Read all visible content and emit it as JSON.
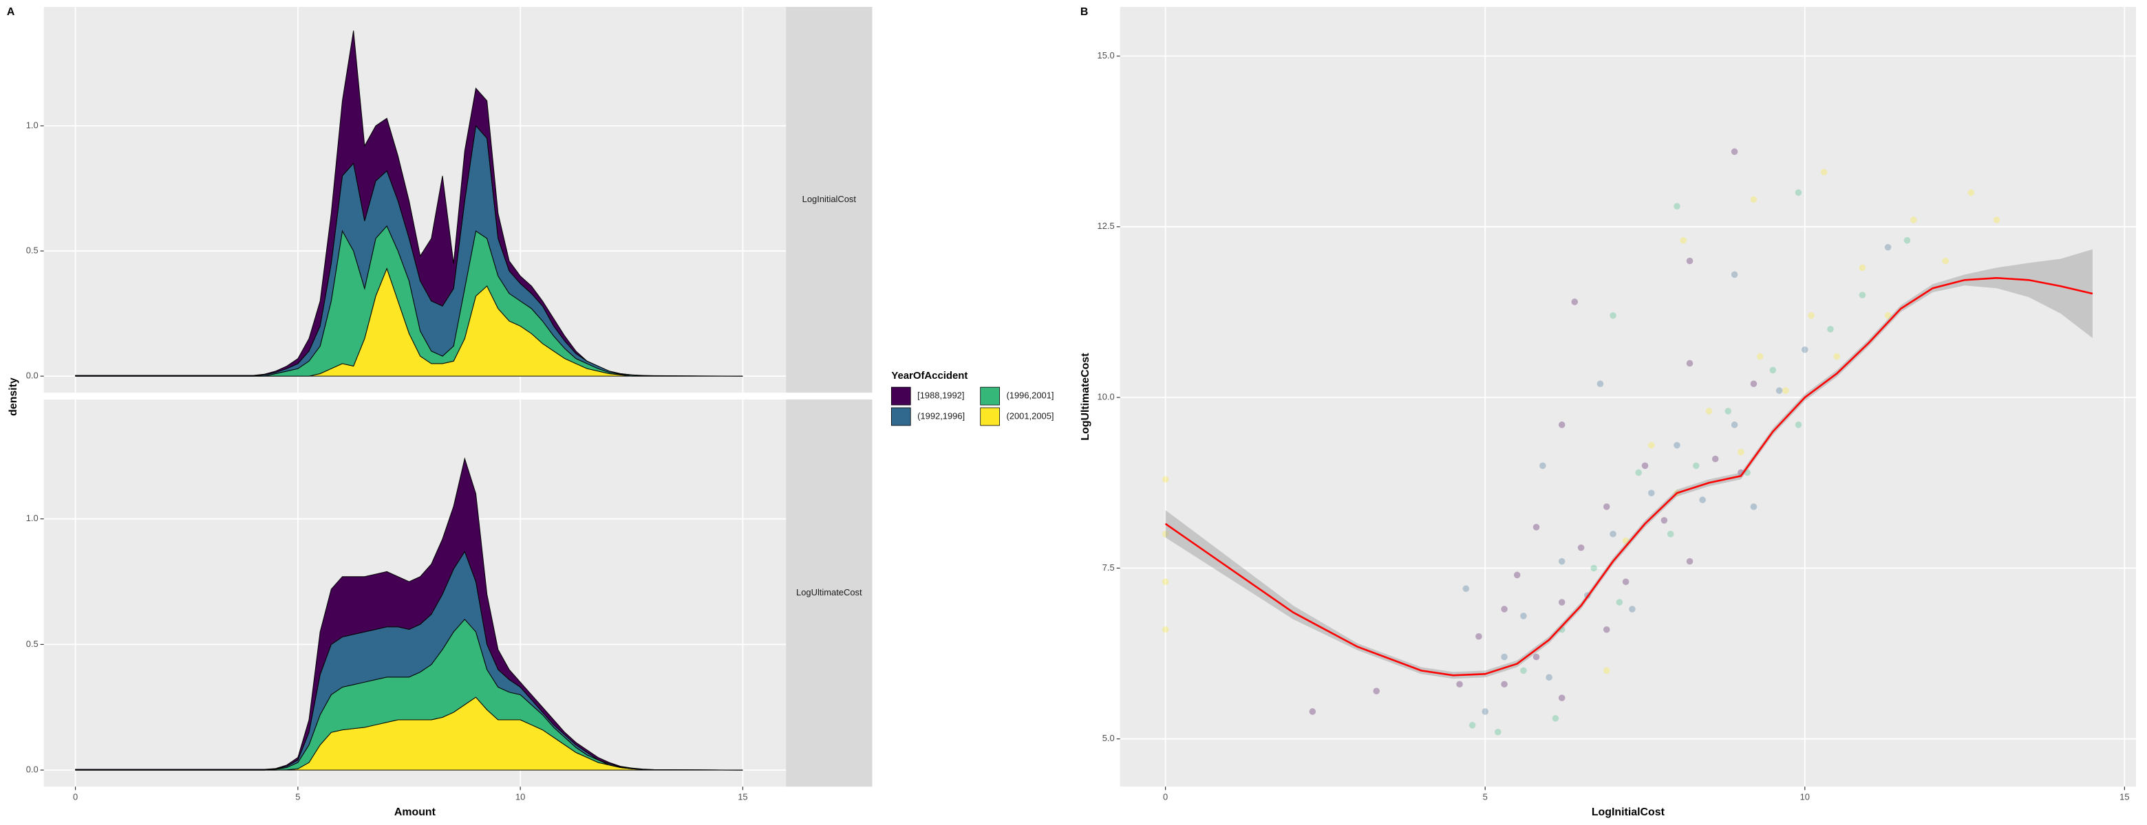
{
  "chart_data": [
    {
      "type": "area",
      "stacked": true,
      "panel_label": "A",
      "xlabel": "Amount",
      "ylabel": "density",
      "legend_title": "YearOfAccident",
      "groups": [
        {
          "name": "[1988,1992]",
          "color": "#440154"
        },
        {
          "name": "(1992,1996]",
          "color": "#31688e"
        },
        {
          "name": "(1996,2001]",
          "color": "#35b779"
        },
        {
          "name": "(2001,2005]",
          "color": "#fde725"
        }
      ],
      "x": [
        0,
        4,
        4.25,
        4.5,
        4.75,
        5,
        5.25,
        5.5,
        5.75,
        6,
        6.25,
        6.5,
        6.75,
        7,
        7.25,
        7.5,
        7.75,
        8,
        8.25,
        8.5,
        8.75,
        9,
        9.25,
        9.5,
        9.75,
        10,
        10.25,
        10.5,
        10.75,
        11,
        11.25,
        11.5,
        11.75,
        12,
        12.25,
        12.5,
        12.75,
        13,
        15
      ],
      "xlim": [
        -0.71,
        15.97
      ],
      "xticks": [
        0,
        5,
        10,
        15
      ],
      "facets": [
        {
          "label": "LogInitialCost",
          "ylim": [
            -0.066,
            1.475
          ],
          "yticks": [
            {
              "value": 0,
              "label": "0.0"
            },
            {
              "value": 0.5,
              "label": "0.5"
            },
            {
              "value": 1,
              "label": "1.0"
            }
          ],
          "series": [
            {
              "values": [
                0.003,
                0.003,
                0.003,
                0.005,
                0.01,
                0.02,
                0.05,
                0.1,
                0.2,
                0.3,
                0.53,
                0.3,
                0.22,
                0.21,
                0.18,
                0.15,
                0.1,
                0.25,
                0.52,
                0.1,
                0.2,
                0.15,
                0.15,
                0.1,
                0.04,
                0.03,
                0.03,
                0.02,
                0.03,
                0.02,
                0.01,
                0,
                0,
                0,
                0,
                0,
                0.001,
                0.001,
                0
              ]
            },
            {
              "values": [
                0,
                0,
                0.005,
                0.005,
                0.01,
                0.02,
                0.04,
                0.08,
                0.15,
                0.22,
                0.35,
                0.27,
                0.23,
                0.22,
                0.2,
                0.17,
                0.2,
                0.2,
                0.2,
                0.23,
                0.35,
                0.42,
                0.4,
                0.15,
                0.09,
                0.07,
                0.06,
                0.06,
                0.04,
                0.03,
                0.02,
                0.01,
                0.01,
                0.005,
                0.002,
                0.001,
                0,
                0,
                0
              ]
            },
            {
              "values": [
                0,
                0,
                0,
                0.01,
                0.02,
                0.03,
                0.06,
                0.11,
                0.27,
                0.53,
                0.46,
                0.2,
                0.23,
                0.17,
                0.2,
                0.21,
                0.1,
                0.05,
                0.03,
                0.06,
                0.2,
                0.26,
                0.19,
                0.13,
                0.11,
                0.1,
                0.1,
                0.09,
                0.06,
                0.04,
                0.02,
                0.02,
                0.01,
                0.005,
                0.003,
                0.004,
                0.002,
                0.001,
                0
              ]
            },
            {
              "values": [
                0,
                0,
                0,
                0,
                0,
                0,
                0,
                0.01,
                0.03,
                0.05,
                0.04,
                0.15,
                0.32,
                0.43,
                0.3,
                0.17,
                0.08,
                0.05,
                0.05,
                0.06,
                0.15,
                0.32,
                0.36,
                0.27,
                0.22,
                0.2,
                0.17,
                0.13,
                0.1,
                0.07,
                0.05,
                0.03,
                0.02,
                0.01,
                0.005,
                0,
                0,
                0,
                0
              ]
            }
          ]
        },
        {
          "label": "LogUltimateCost",
          "ylim": [
            -0.066,
            1.475
          ],
          "yticks": [
            {
              "value": 0,
              "label": "0.0"
            },
            {
              "value": 0.5,
              "label": "0.5"
            },
            {
              "value": 1,
              "label": "1.0"
            }
          ],
          "series": [
            {
              "values": [
                0.003,
                0.003,
                0.003,
                0.002,
                0.005,
                0.01,
                0.05,
                0.17,
                0.22,
                0.24,
                0.23,
                0.22,
                0.22,
                0.22,
                0.2,
                0.19,
                0.19,
                0.2,
                0.22,
                0.25,
                0.37,
                0.35,
                0.2,
                0.08,
                0.04,
                0.02,
                0.02,
                0.02,
                0.02,
                0.01,
                0.01,
                0.01,
                0.01,
                0.005,
                0.003,
                0.002,
                0.001,
                0.001,
                0
              ]
            },
            {
              "values": [
                0,
                0,
                0,
                0.001,
                0.005,
                0.01,
                0.05,
                0.16,
                0.2,
                0.2,
                0.2,
                0.2,
                0.2,
                0.2,
                0.2,
                0.19,
                0.19,
                0.2,
                0.22,
                0.25,
                0.27,
                0.2,
                0.1,
                0.07,
                0.05,
                0.03,
                0.02,
                0.01,
                0.01,
                0.01,
                0.01,
                0.01,
                0,
                0.005,
                0.002,
                0,
                0,
                0,
                0
              ]
            },
            {
              "values": [
                0,
                0,
                0,
                0.003,
                0.009,
                0.025,
                0.07,
                0.12,
                0.15,
                0.17,
                0.175,
                0.18,
                0.18,
                0.18,
                0.17,
                0.17,
                0.19,
                0.22,
                0.27,
                0.32,
                0.34,
                0.26,
                0.16,
                0.13,
                0.11,
                0.1,
                0.08,
                0.06,
                0.04,
                0.03,
                0.02,
                0.01,
                0.01,
                0,
                0,
                0.001,
                0.001,
                0,
                0
              ]
            },
            {
              "values": [
                0,
                0,
                0,
                0,
                0.001,
                0.005,
                0.03,
                0.1,
                0.15,
                0.16,
                0.165,
                0.17,
                0.18,
                0.19,
                0.2,
                0.2,
                0.2,
                0.2,
                0.21,
                0.23,
                0.26,
                0.29,
                0.24,
                0.2,
                0.2,
                0.2,
                0.18,
                0.16,
                0.13,
                0.1,
                0.07,
                0.05,
                0.03,
                0.02,
                0.01,
                0.005,
                0.002,
                0.001,
                0
              ]
            }
          ]
        }
      ]
    },
    {
      "type": "scatter",
      "panel_label": "B",
      "xlabel": "LogInitialCost",
      "ylabel": "LogUltimateCost",
      "xlim": [
        -0.71,
        15.18
      ],
      "ylim": [
        4.3,
        15.72
      ],
      "xticks": [
        0,
        5,
        10,
        15
      ],
      "yticks": [
        {
          "value": 5,
          "label": "5.0"
        },
        {
          "value": 7.5,
          "label": "7.5"
        },
        {
          "value": 10,
          "label": "10.0"
        },
        {
          "value": 12.5,
          "label": "12.5"
        },
        {
          "value": 15,
          "label": "15.0"
        }
      ],
      "series": [
        {
          "color": "#440154",
          "x": [
            5.3,
            5.3,
            5.5,
            5.8,
            5.8,
            6.2,
            6.2,
            6.2,
            6.5,
            6.9,
            6.9,
            7.2,
            7.5,
            7.8,
            8.2,
            8.2,
            8.2,
            8.6,
            9.0,
            9.2,
            4.6,
            4.9,
            3.3,
            2.3,
            8.9,
            6.4
          ],
          "y": [
            5.8,
            6.9,
            7.4,
            6.2,
            8.1,
            5.6,
            7.0,
            9.6,
            7.8,
            6.6,
            8.4,
            7.3,
            9.0,
            8.2,
            7.6,
            10.5,
            12.0,
            9.1,
            8.9,
            10.2,
            5.8,
            6.5,
            5.7,
            5.4,
            13.6,
            11.4
          ]
        },
        {
          "color": "#31688e",
          "x": [
            5.0,
            5.3,
            5.6,
            6.0,
            6.2,
            6.6,
            7.0,
            7.3,
            7.6,
            8.0,
            8.4,
            8.9,
            8.9,
            9.2,
            9.6,
            10.0,
            6.8,
            5.9,
            4.7,
            11.3
          ],
          "y": [
            5.4,
            6.2,
            6.8,
            5.9,
            7.6,
            7.1,
            8.0,
            6.9,
            8.6,
            9.3,
            8.5,
            9.6,
            11.8,
            8.4,
            10.1,
            10.7,
            10.2,
            9.0,
            7.2,
            12.2
          ]
        },
        {
          "color": "#35b779",
          "x": [
            5.2,
            5.6,
            6.1,
            6.2,
            6.7,
            7.1,
            7.4,
            7.9,
            8.3,
            8.8,
            9.1,
            9.5,
            9.9,
            10.4,
            10.9,
            11.6,
            7.0,
            8.0,
            9.9,
            4.8
          ],
          "y": [
            5.1,
            6.0,
            5.3,
            6.6,
            7.5,
            7.0,
            8.9,
            8.0,
            9.0,
            9.8,
            8.9,
            10.4,
            9.6,
            11.0,
            11.5,
            12.3,
            11.2,
            12.8,
            13.0,
            5.2
          ]
        },
        {
          "color": "#fde725",
          "x": [
            0,
            0,
            0,
            0,
            6.9,
            7.2,
            7.6,
            8.0,
            8.5,
            9.0,
            9.3,
            9.7,
            10.1,
            10.5,
            10.9,
            11.3,
            11.7,
            12.2,
            12.6,
            13.0,
            10.3,
            8.1,
            9.2
          ],
          "y": [
            6.6,
            7.3,
            8.0,
            8.8,
            6.0,
            7.9,
            9.3,
            8.6,
            9.8,
            9.2,
            10.6,
            10.1,
            11.2,
            10.6,
            11.9,
            11.2,
            12.6,
            12.0,
            13.0,
            12.6,
            13.3,
            12.3,
            12.9
          ]
        }
      ],
      "smooth": {
        "color": "#ff0000",
        "x": [
          0,
          1,
          2,
          3,
          4,
          4.5,
          5,
          5.5,
          6,
          6.5,
          7,
          7.5,
          8,
          8.5,
          9,
          9.5,
          10,
          10.5,
          11,
          11.5,
          12,
          12.5,
          13,
          13.5,
          14,
          14.5
        ],
        "y": [
          8.15,
          7.5,
          6.85,
          6.35,
          6.0,
          5.93,
          5.95,
          6.1,
          6.45,
          6.95,
          7.6,
          8.15,
          8.6,
          8.75,
          8.85,
          9.5,
          10.0,
          10.35,
          10.8,
          11.3,
          11.6,
          11.72,
          11.75,
          11.72,
          11.63,
          11.52
        ],
        "lower": [
          7.95,
          7.35,
          6.75,
          6.3,
          5.95,
          5.88,
          5.9,
          6.05,
          6.4,
          6.9,
          7.55,
          8.1,
          8.55,
          8.7,
          8.8,
          9.45,
          9.95,
          10.3,
          10.75,
          11.25,
          11.54,
          11.64,
          11.6,
          11.47,
          11.23,
          10.87
        ],
        "upper": [
          8.35,
          7.65,
          6.95,
          6.4,
          6.05,
          5.98,
          6.0,
          6.15,
          6.5,
          7.0,
          7.65,
          8.2,
          8.65,
          8.8,
          8.9,
          9.55,
          10.05,
          10.4,
          10.85,
          11.35,
          11.66,
          11.8,
          11.9,
          11.97,
          12.03,
          12.17
        ]
      }
    }
  ]
}
